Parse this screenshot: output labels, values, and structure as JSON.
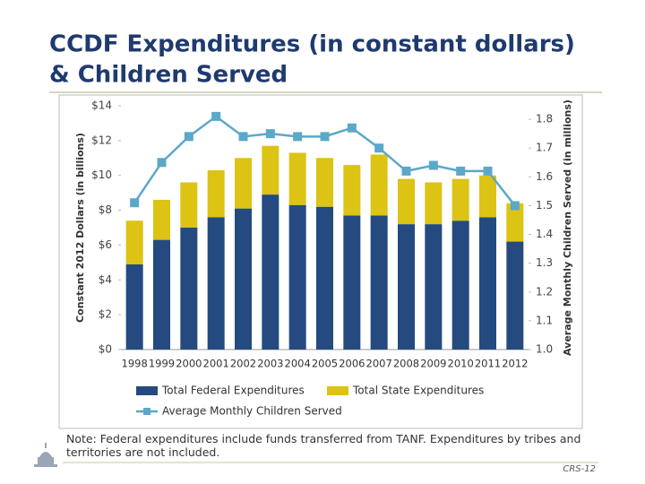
{
  "header": {
    "title_lines": [
      "CCDF Expenditures (in constant dollars)",
      "& Children Served"
    ]
  },
  "chart_data": {
    "type": "bar",
    "stacked": true,
    "categories": [
      "1998",
      "1999",
      "2000",
      "2001",
      "2002",
      "2003",
      "2004",
      "2005",
      "2006",
      "2007",
      "2008",
      "2009",
      "2010",
      "2011",
      "2012"
    ],
    "y_label": "Constant 2012 Dollars (in billions)",
    "y2_label": "Average Monthly Children Served (in millions)",
    "series": [
      {
        "name": "Total Federal Expenditures",
        "type": "bar",
        "color": "#244a80",
        "values": [
          4.9,
          6.3,
          7.0,
          7.6,
          8.1,
          8.9,
          8.3,
          8.2,
          7.7,
          7.7,
          7.2,
          7.2,
          7.4,
          7.6,
          6.2
        ]
      },
      {
        "name": "Total State Expenditures",
        "type": "bar",
        "color": "#dcc314",
        "values": [
          2.5,
          2.3,
          2.6,
          2.7,
          2.9,
          2.8,
          3.0,
          2.8,
          2.9,
          3.5,
          2.6,
          2.4,
          2.4,
          2.4,
          2.2
        ]
      },
      {
        "name": "Average Monthly Children Served",
        "type": "line",
        "axis": "y2",
        "color": "#5ba8c9",
        "values": [
          1.51,
          1.65,
          1.74,
          1.81,
          1.74,
          1.75,
          1.74,
          1.74,
          1.77,
          1.7,
          1.62,
          1.64,
          1.62,
          1.62,
          1.5
        ]
      }
    ],
    "ylim": [
      0,
      14
    ],
    "yticks": [
      {
        "value": 0,
        "label": "$0"
      },
      {
        "value": 2,
        "label": "$2"
      },
      {
        "value": 4,
        "label": "$4"
      },
      {
        "value": 6,
        "label": "$6"
      },
      {
        "value": 8,
        "label": "$8"
      },
      {
        "value": 10,
        "label": "$10"
      },
      {
        "value": 12,
        "label": "$12"
      },
      {
        "value": 14,
        "label": "$14"
      }
    ],
    "y2lim": [
      1.0,
      1.847
    ],
    "y2ticks": [
      {
        "value": 1.0,
        "label": "1.0"
      },
      1.1,
      1.2,
      1.3,
      1.4,
      1.5,
      1.6,
      1.7,
      1.8
    ],
    "grid": false
  },
  "note": "Note: Federal expenditures include funds transferred from TANF.  Expenditures by tribes and territories are not included.",
  "footer": "CRS-12"
}
